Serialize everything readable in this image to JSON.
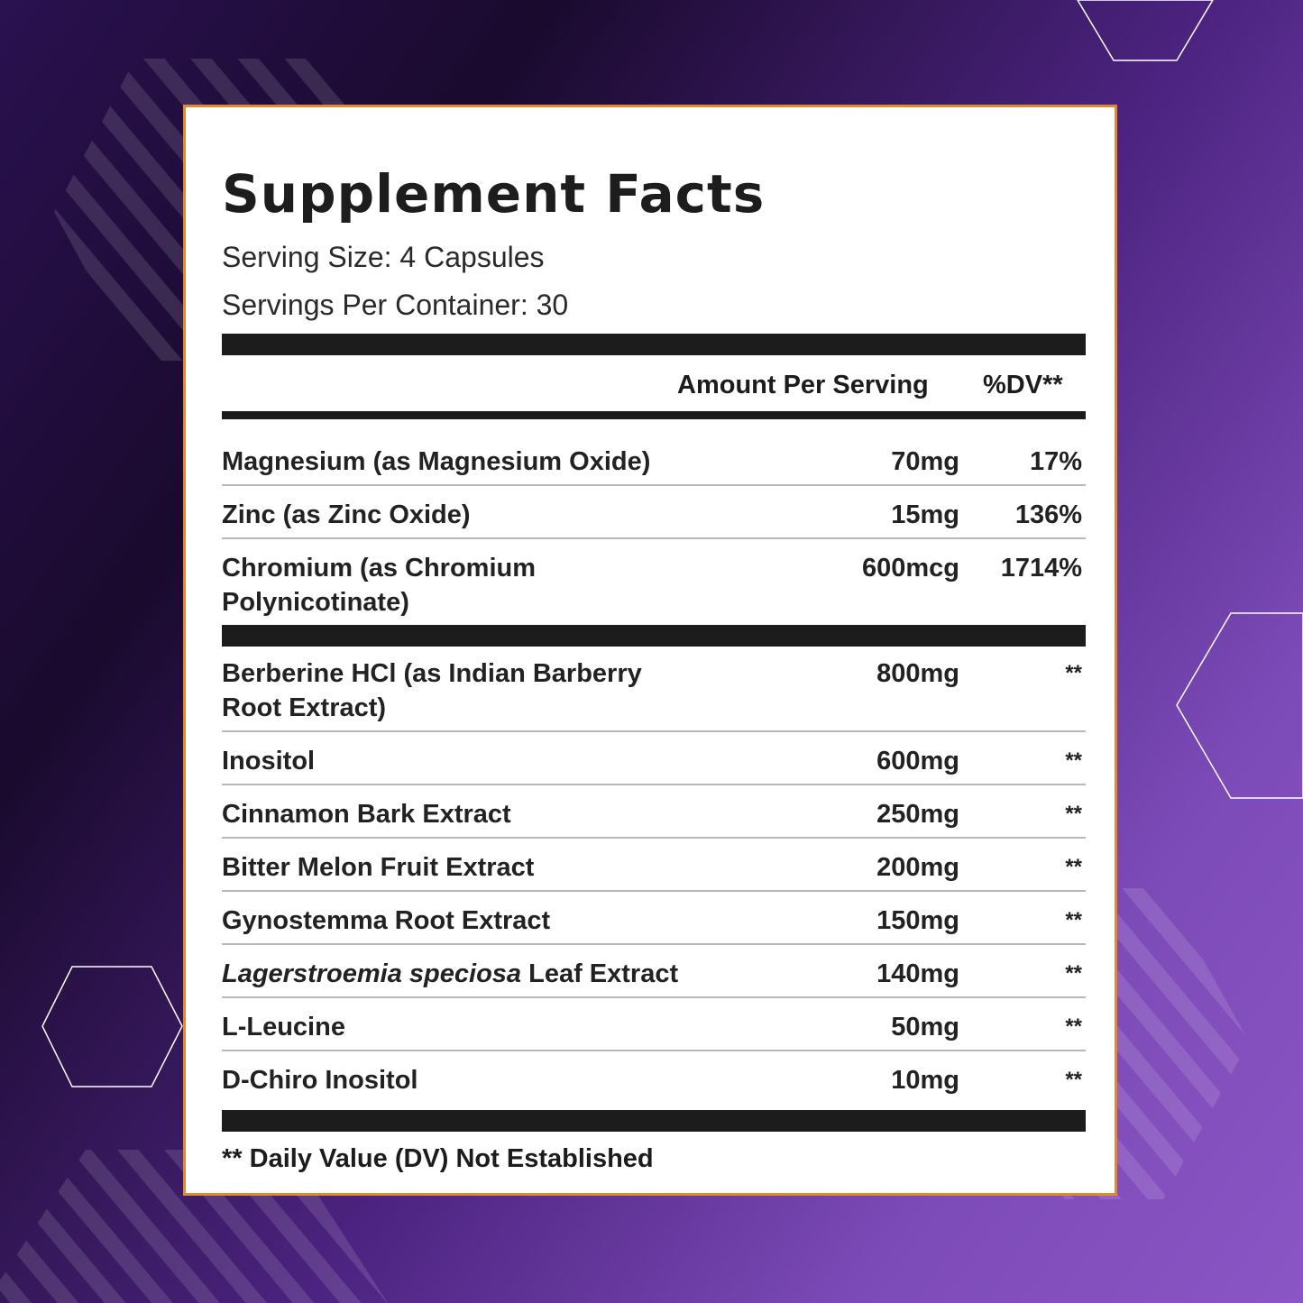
{
  "colors": {
    "background_dark": "#1a0a2e",
    "background_purple": "#8a55c4",
    "label_border": "#e08a2e",
    "text": "#1c1c1c"
  },
  "label": {
    "title": "Supplement Facts",
    "serving_size": "Serving Size: 4 Capsules",
    "servings_per_container": "Servings Per Container: 30",
    "header_amount": "Amount Per Serving",
    "header_dv": "%DV**",
    "vitamins": [
      {
        "name": "Magnesium (as Magnesium Oxide)",
        "amount": "70mg",
        "dv": "17%"
      },
      {
        "name": "Zinc (as Zinc Oxide)",
        "amount": "15mg",
        "dv": "136%"
      },
      {
        "name_line1": "Chromium (as Chromium",
        "name_line2": "Polynicotinate)",
        "amount": "600mcg",
        "dv": "1714%"
      }
    ],
    "ingredients": [
      {
        "name_line1": "Berberine HCl (as Indian Barberry",
        "name_line2": "Root Extract)",
        "amount": "800mg",
        "dv": "**"
      },
      {
        "name": "Inositol",
        "amount": "600mg",
        "dv": "**"
      },
      {
        "name": "Cinnamon Bark Extract",
        "amount": "250mg",
        "dv": "**"
      },
      {
        "name": "Bitter Melon Fruit Extract",
        "amount": "200mg",
        "dv": "**"
      },
      {
        "name": "Gynostemma Root Extract",
        "amount": "150mg",
        "dv": "**"
      },
      {
        "name_italic": "Lagerstroemia speciosa",
        "name_rest": " Leaf Extract",
        "amount": "140mg",
        "dv": "**"
      },
      {
        "name": "L-Leucine",
        "amount": "50mg",
        "dv": "**"
      },
      {
        "name": "D-Chiro Inositol",
        "amount": "10mg",
        "dv": "**"
      }
    ],
    "footnote": "** Daily Value (DV) Not Established"
  }
}
